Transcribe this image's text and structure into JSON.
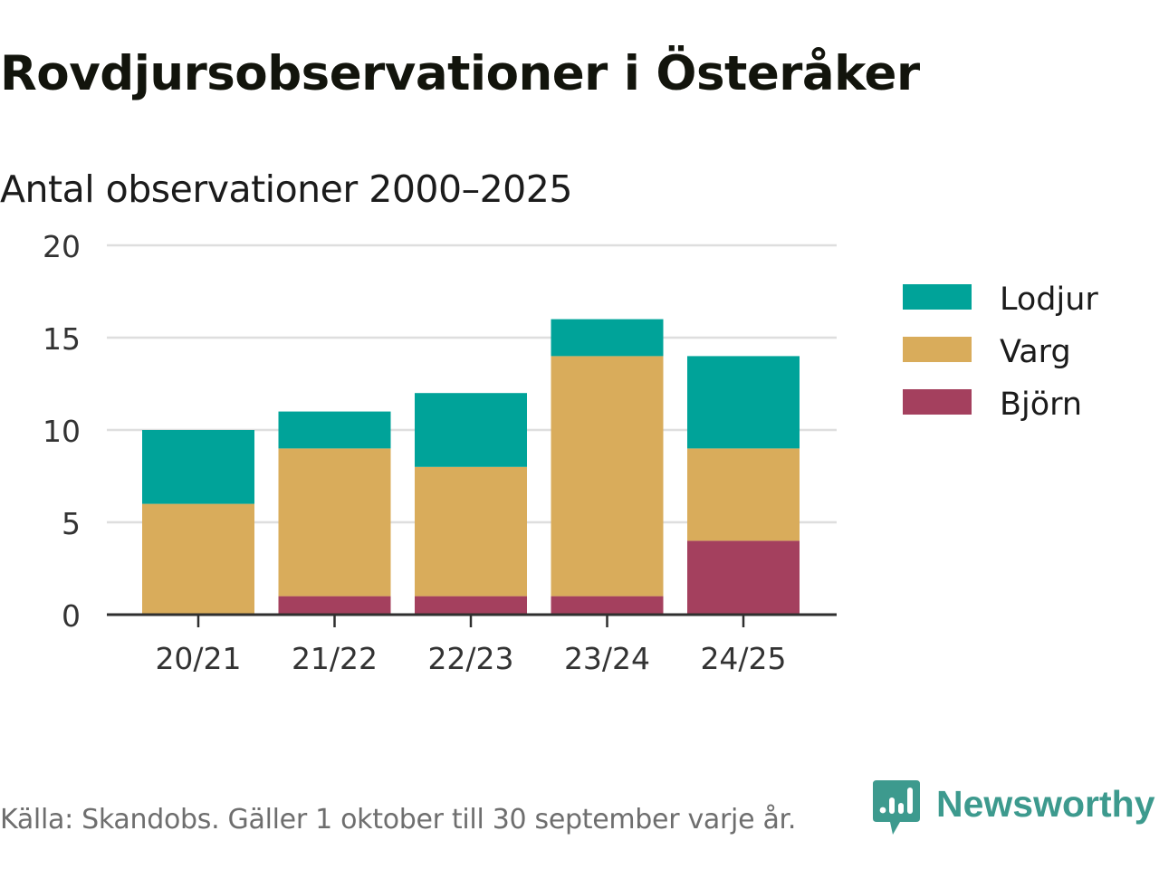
{
  "title": "Rovdjursobservationer i Österåker",
  "subtitle": "Antal observationer 2000–2025",
  "chart_data": {
    "type": "bar",
    "stacked": true,
    "categories": [
      "20/21",
      "21/22",
      "22/23",
      "23/24",
      "24/25"
    ],
    "series": [
      {
        "name": "Björn",
        "color": "#a4405e",
        "values": [
          0,
          1,
          1,
          1,
          4
        ]
      },
      {
        "name": "Varg",
        "color": "#d9ac5b",
        "values": [
          6,
          8,
          7,
          13,
          5
        ]
      },
      {
        "name": "Lodjur",
        "color": "#00a399",
        "values": [
          4,
          2,
          4,
          2,
          5
        ]
      }
    ],
    "legend_order": [
      "Lodjur",
      "Varg",
      "Björn"
    ],
    "legend_position": "right",
    "ylim": [
      0,
      20
    ],
    "yticks": [
      "0",
      "5",
      "10",
      "15",
      "20"
    ],
    "grid": true,
    "xlabel": "",
    "ylabel": ""
  },
  "footer": {
    "source": "Källa: Skandobs. Gäller 1 oktober till 30 september varje år.",
    "brand": "Newsworthy"
  },
  "colors": {
    "brand": "#3d9a8e",
    "grid": "#dedede",
    "axis": "#2f2f2f"
  }
}
